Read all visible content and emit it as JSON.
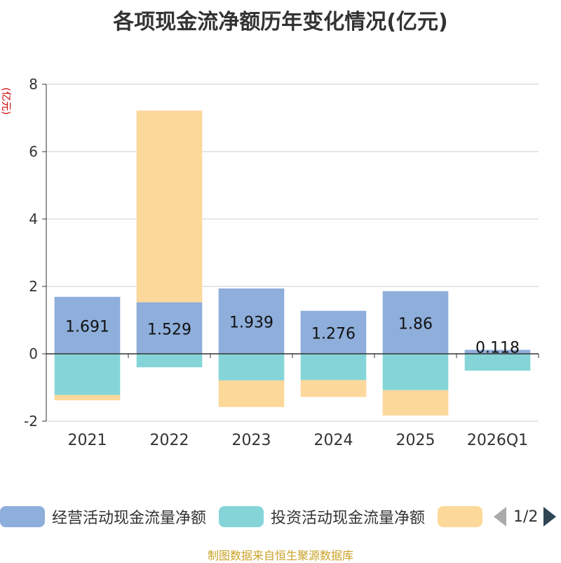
{
  "chart_data": {
    "type": "bar",
    "stacked": true,
    "title": "各项现金流净额历年变化情况(亿元)",
    "ylabel": "(亿元)",
    "categories": [
      "2021",
      "2022",
      "2023",
      "2024",
      "2025",
      "2026Q1"
    ],
    "ylim": [
      -2,
      8
    ],
    "yticks": [
      -2,
      0,
      2,
      4,
      6,
      8
    ],
    "grid": true,
    "series": [
      {
        "name": "经营活动现金流量净额",
        "color": "#8eaedb",
        "values": [
          1.691,
          1.529,
          1.939,
          1.276,
          1.86,
          0.118
        ],
        "labels": [
          "1.691",
          "1.529",
          "1.939",
          "1.276",
          "1.86",
          "0.118"
        ]
      },
      {
        "name": "投资活动现金流量净额",
        "color": "#85d5d8",
        "values": [
          -1.22,
          -0.4,
          -0.79,
          -0.78,
          -1.08,
          -0.5
        ]
      },
      {
        "name": "",
        "color": "#fdd89b",
        "values": [
          -0.16,
          5.69,
          -0.79,
          -0.5,
          -0.75,
          0.0
        ]
      }
    ],
    "legend": {
      "position": "bottom",
      "page": "1/2"
    }
  },
  "source": "制图数据来自恒生聚源数据库"
}
